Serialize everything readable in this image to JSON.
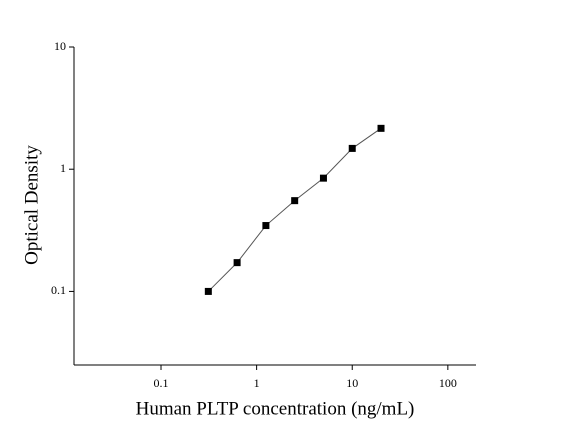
{
  "chart_data": {
    "type": "scatter",
    "x_label": "Human PLTP concentration (ng/mL)",
    "y_label": "Optical Density",
    "x": [
      0.3125,
      0.625,
      1.25,
      2.5,
      5,
      10,
      20
    ],
    "series": [
      {
        "color": "#000000",
        "values": [
          0.1,
          0.172,
          0.346,
          0.553,
          0.845,
          1.48,
          2.16
        ]
      }
    ],
    "line_color": "#555555",
    "xlog": true,
    "ylog": true,
    "xlim": [
      0.0123,
      197
    ],
    "ylim": [
      0.025,
      10
    ],
    "xticks": [
      0.1,
      1,
      10,
      100
    ],
    "yticks": [
      0.1,
      1,
      10
    ]
  }
}
